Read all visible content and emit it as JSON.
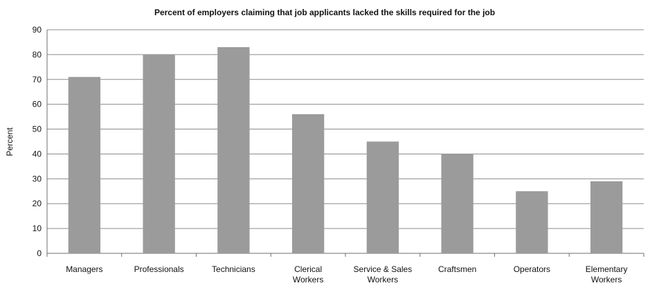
{
  "chart_data": {
    "type": "bar",
    "title": "Percent of employers claiming that job applicants lacked the skills required for the job",
    "xlabel": "",
    "ylabel": "Percent",
    "ylim": [
      0,
      90
    ],
    "yticks": [
      0,
      10,
      20,
      30,
      40,
      50,
      60,
      70,
      80,
      90
    ],
    "grid": true,
    "legend": "none",
    "bar_color": "#9b9b9b",
    "categories": [
      [
        "Managers"
      ],
      [
        "Professionals"
      ],
      [
        "Technicians"
      ],
      [
        "Clerical",
        "Workers"
      ],
      [
        "Service & Sales",
        "Workers"
      ],
      [
        "Craftsmen"
      ],
      [
        "Operators"
      ],
      [
        "Elementary",
        "Workers"
      ]
    ],
    "values": [
      71,
      80,
      83,
      56,
      45,
      40,
      25,
      29
    ]
  }
}
